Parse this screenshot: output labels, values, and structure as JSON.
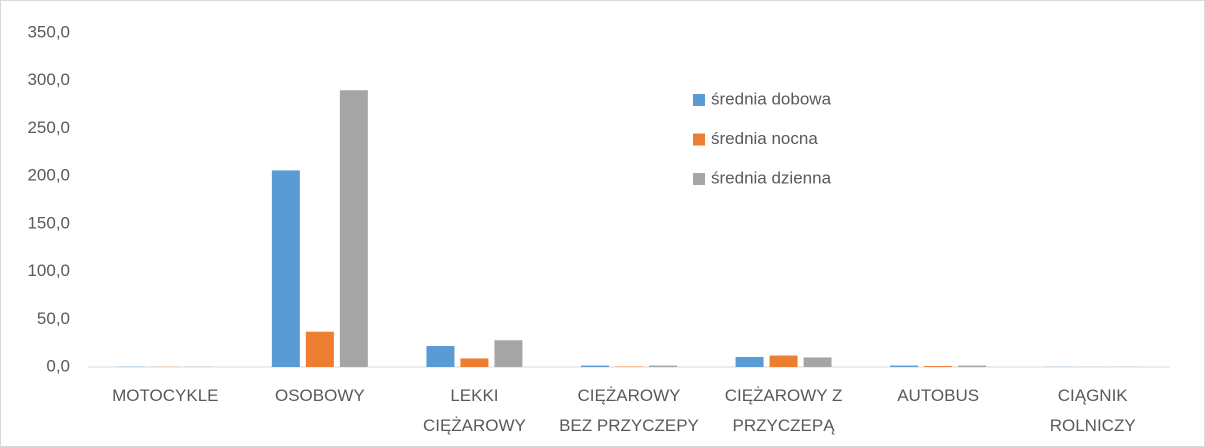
{
  "chart_data": {
    "type": "bar",
    "categories": [
      "MOTOCYKLE",
      "OSOBOWY",
      "LEKKI CIĘŻAROWY",
      "CIĘŻAROWY BEZ PRZYCZEPY",
      "CIĘŻAROWY Z PRZYCZEPĄ",
      "AUTOBUS",
      "CIĄGNIK ROLNICZY"
    ],
    "series": [
      {
        "name": "średnia dobowa",
        "color": "#5b9bd5",
        "values": [
          0.3,
          206,
          22,
          1.5,
          10.5,
          1.5,
          0.2
        ]
      },
      {
        "name": "średnia nocna",
        "color": "#ed7d31",
        "values": [
          0.2,
          37,
          9,
          0.5,
          12,
          1,
          0.1
        ]
      },
      {
        "name": "średnia dzienna",
        "color": "#a5a5a5",
        "values": [
          0.3,
          290,
          28,
          1.5,
          10,
          1.5,
          0.2
        ]
      }
    ],
    "ylim": [
      0,
      350
    ],
    "yticks": [
      {
        "value": 0,
        "label": "0,0"
      },
      {
        "value": 50,
        "label": "50,0"
      },
      {
        "value": 100,
        "label": "100,0"
      },
      {
        "value": 150,
        "label": "150,0"
      },
      {
        "value": 200,
        "label": "200,0"
      },
      {
        "value": 250,
        "label": "250,0"
      },
      {
        "value": 300,
        "label": "300,0"
      },
      {
        "value": 350,
        "label": "350,0"
      }
    ],
    "grid": false
  }
}
